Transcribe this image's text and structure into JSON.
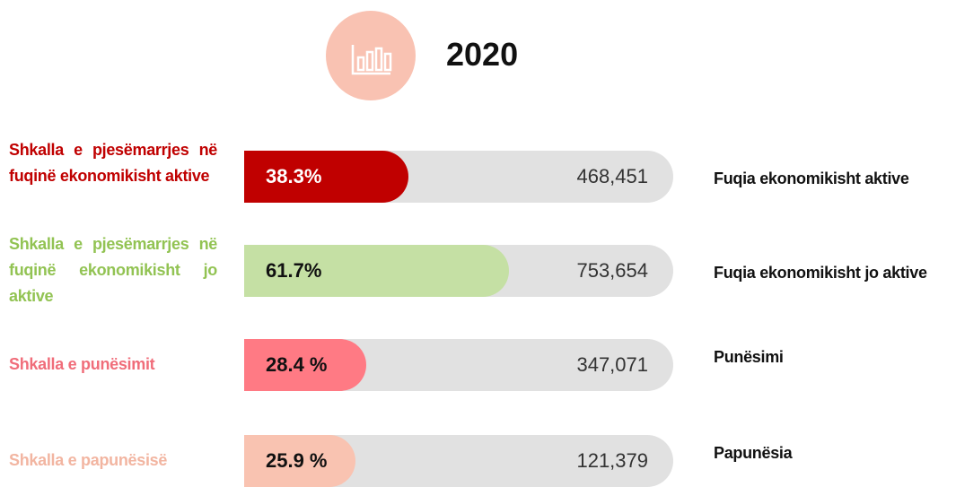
{
  "chart_data": {
    "type": "bar",
    "title": "2020",
    "categories": [
      "Shkalla e pjesëmarrjes në fuqinë ekonomikisht aktive",
      "Shkalla e pjesëmarrjes në fuqinë ekonomikisht jo aktive",
      "Shkalla e punësimit",
      "Shkalla e papunësisë"
    ],
    "values": [
      38.3,
      61.7,
      28.4,
      25.9
    ],
    "value_labels": [
      "38.3%",
      "61.7%",
      "28.4 %",
      "25.9 %"
    ],
    "counts": [
      468451,
      753654,
      347071,
      121379
    ],
    "count_labels": [
      "468,451",
      "753,654",
      "347,071",
      "121,379"
    ],
    "descriptions": [
      "Fuqia ekonomikisht aktive",
      "Fuqia ekonomikisht jo aktive",
      "Punësimi",
      "Papunësia"
    ],
    "colors": [
      "#c00000",
      "#c5e0a4",
      "#ff7a84",
      "#f9c3b1"
    ],
    "label_colors": [
      "#c00000",
      "#92c353",
      "#f06d7a",
      "#f2b5a1"
    ],
    "xlim": [
      0,
      100
    ]
  }
}
